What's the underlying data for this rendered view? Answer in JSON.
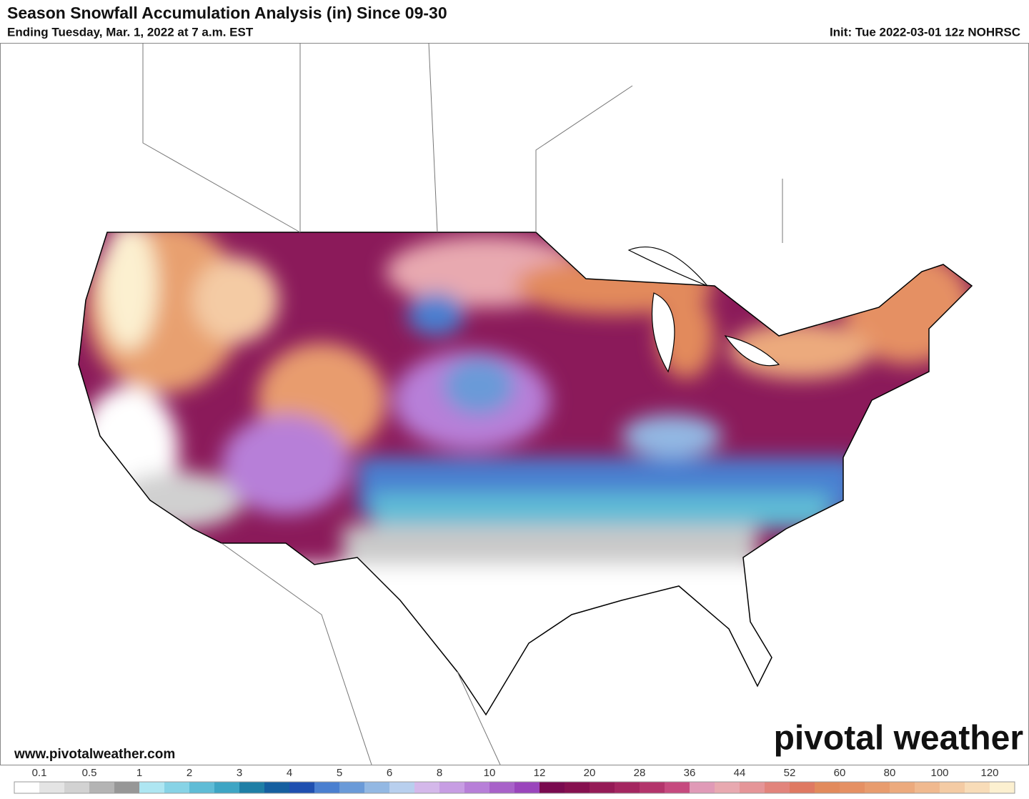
{
  "header": {
    "title": "Season Snowfall Accumulation Analysis (in) Since 09-30",
    "subtitle": "Ending Tuesday, Mar. 1, 2022 at 7 a.m. EST",
    "init": "Init: Tue 2022-03-01 12z NOHRSC"
  },
  "watermark": {
    "url": "www.pivotalweather.com",
    "logo": "pivotal weather"
  },
  "legend": {
    "ticks": [
      0.1,
      0.5,
      1,
      2,
      3,
      4,
      5,
      6,
      8,
      10,
      12,
      20,
      28,
      36,
      44,
      52,
      60,
      80,
      100,
      120
    ],
    "colors": [
      "#ffffff",
      "#e4e4e4",
      "#d2d2d2",
      "#b4b4b4",
      "#979797",
      "#aee6f2",
      "#87d3e6",
      "#5fbcd6",
      "#3ea5c4",
      "#1f7fa6",
      "#155fa0",
      "#1f4fb0",
      "#4a7fd0",
      "#6a9ad8",
      "#93b8e3",
      "#b8cfee",
      "#d4b8ea",
      "#c79de3",
      "#b77fd8",
      "#a862c9",
      "#9a45bc",
      "#7a0a4f",
      "#86104f",
      "#951a56",
      "#a42660",
      "#b3346b",
      "#c64a7f",
      "#e09ab7",
      "#e8a9b0",
      "#e59598",
      "#e2847c",
      "#df7962",
      "#e28a5c",
      "#e59063",
      "#e89c6e",
      "#ecaa7d",
      "#f0b98f",
      "#f4cba4",
      "#f8dcb8",
      "#fcf0d0"
    ]
  }
}
